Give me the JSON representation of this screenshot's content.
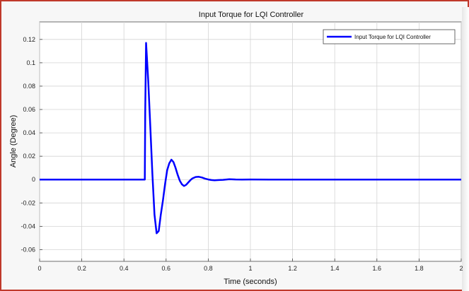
{
  "chart_data": {
    "type": "line",
    "title": "Input Torque for LQI Controller",
    "xlabel": "Time (seconds)",
    "ylabel": "Angle (Degree)",
    "xlim": [
      0,
      2
    ],
    "ylim": [
      -0.07,
      0.135
    ],
    "grid": true,
    "legend_position": "top-right",
    "x_ticks": [
      0,
      0.2,
      0.4,
      0.6,
      0.8,
      1,
      1.2,
      1.4,
      1.6,
      1.8,
      2
    ],
    "x_tick_labels": [
      "0",
      "0.2",
      "0.4",
      "0.6",
      "0.8",
      "1",
      "1.2",
      "1.4",
      "1.6",
      "1.8",
      "2"
    ],
    "y_ticks": [
      0.12,
      0.1,
      0.08,
      0.06,
      0.04,
      0.02,
      0,
      -0.02,
      -0.04,
      -0.06
    ],
    "y_tick_labels": [
      "0.12",
      "0.1",
      "0.08",
      "0.06",
      "0.04",
      "0.02",
      "0",
      "-0.02",
      "-0.04",
      "-0.06"
    ],
    "series": [
      {
        "name": "Input Torque for LQI Controller",
        "color": "#0000ff",
        "x": [
          0,
          0.499,
          0.501,
          0.505,
          0.515,
          0.525,
          0.535,
          0.545,
          0.555,
          0.565,
          0.575,
          0.585,
          0.595,
          0.605,
          0.615,
          0.625,
          0.635,
          0.645,
          0.655,
          0.665,
          0.675,
          0.685,
          0.695,
          0.705,
          0.715,
          0.725,
          0.74,
          0.755,
          0.77,
          0.785,
          0.8,
          0.815,
          0.83,
          0.85,
          0.87,
          0.9,
          0.93,
          0.96,
          1.0,
          1.1,
          1.3,
          2.0
        ],
        "y": [
          0,
          0,
          0.058,
          0.117,
          0.085,
          0.045,
          0.005,
          -0.03,
          -0.046,
          -0.044,
          -0.03,
          -0.018,
          -0.004,
          0.008,
          0.014,
          0.017,
          0.015,
          0.01,
          0.004,
          -0.001,
          -0.004,
          -0.0055,
          -0.0045,
          -0.0025,
          -0.0005,
          0.001,
          0.0022,
          0.0024,
          0.0018,
          0.0008,
          0.0001,
          -0.0004,
          -0.0006,
          -0.0004,
          -0.0002,
          0.0003,
          0.0001,
          0,
          0.0001,
          0,
          0,
          0
        ]
      }
    ]
  }
}
